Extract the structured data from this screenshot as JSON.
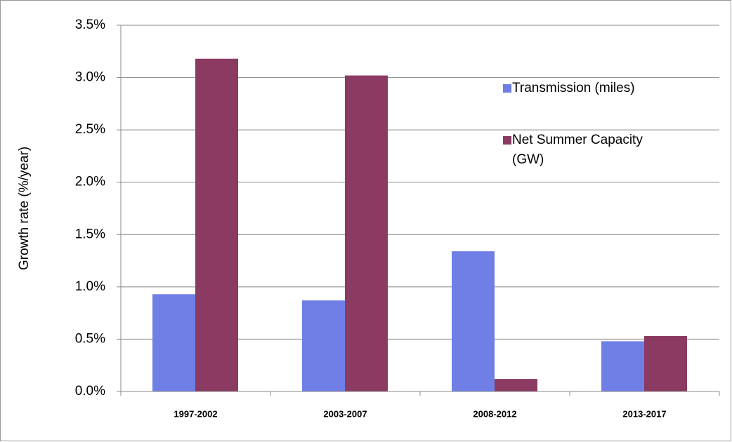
{
  "chart_data": {
    "type": "bar",
    "y_label": "Growth rate (%/year)",
    "categories": [
      "1997-2002",
      "2003-2007",
      "2008-2012",
      "2013-2017"
    ],
    "series": [
      {
        "name": "Transmission (miles)",
        "color": "#6f7fe5",
        "values": [
          0.93,
          0.87,
          1.34,
          0.48
        ]
      },
      {
        "name": "Net Summer Capacity (GW)",
        "color": "#8b3a62",
        "values": [
          3.18,
          3.02,
          0.12,
          0.53
        ]
      }
    ],
    "ylim": [
      0,
      3.5
    ],
    "yticks": [
      {
        "value": 0,
        "label": "0.0%"
      },
      {
        "value": 0.5,
        "label": "0.5%"
      },
      {
        "value": 1,
        "label": "1.0%"
      },
      {
        "value": 1.5,
        "label": "1.5%"
      },
      {
        "value": 2,
        "label": "2.0%"
      },
      {
        "value": 2.5,
        "label": "2.5%"
      },
      {
        "value": 3,
        "label": "3.0%"
      },
      {
        "value": 3.5,
        "label": "3.5%"
      }
    ],
    "grid": true
  }
}
